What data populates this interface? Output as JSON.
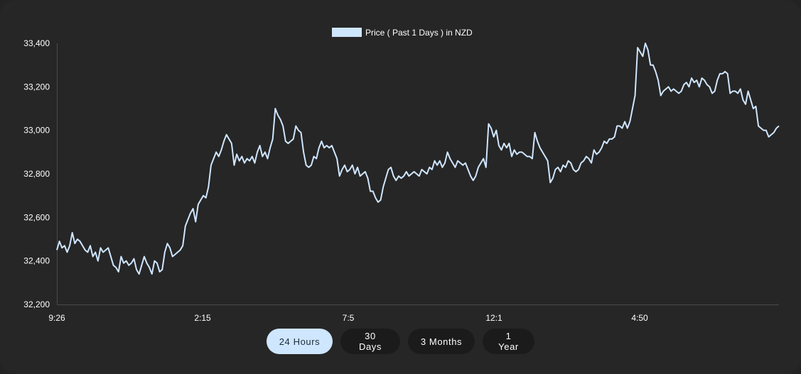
{
  "chart_data": {
    "type": "line",
    "legend": {
      "label": "Price ( Past 1 Days ) in NZD",
      "placement": "top-center"
    },
    "series_color": "#cfe6ff",
    "ylim": [
      32200,
      33400
    ],
    "y_ticks": [
      "33,400",
      "33,200",
      "33,000",
      "32,800",
      "32,600",
      "32,400",
      "32,200"
    ],
    "y_tick_values": [
      33400,
      33200,
      33000,
      32800,
      32600,
      32400,
      32200
    ],
    "x_tick_labels": [
      "9:26",
      "2:15",
      "7:5",
      "12:1",
      "4:50"
    ],
    "grid": false,
    "values": [
      32450,
      32490,
      32460,
      32470,
      32440,
      32470,
      32530,
      32480,
      32500,
      32490,
      32470,
      32450,
      32440,
      32470,
      32420,
      32440,
      32400,
      32460,
      32440,
      32450,
      32460,
      32420,
      32380,
      32370,
      32350,
      32420,
      32390,
      32400,
      32380,
      32390,
      32410,
      32360,
      32340,
      32380,
      32420,
      32390,
      32370,
      32340,
      32400,
      32390,
      32350,
      32360,
      32440,
      32480,
      32460,
      32420,
      32430,
      32440,
      32450,
      32470,
      32560,
      32590,
      32620,
      32640,
      32580,
      32660,
      32680,
      32700,
      32690,
      32740,
      32840,
      32870,
      32900,
      32880,
      32910,
      32950,
      32980,
      32960,
      32940,
      32840,
      32890,
      32860,
      32880,
      32850,
      32870,
      32860,
      32880,
      32850,
      32900,
      32930,
      32880,
      32900,
      32870,
      32920,
      32960,
      33100,
      33070,
      33050,
      33020,
      32950,
      32940,
      32950,
      32960,
      33020,
      33000,
      32990,
      32900,
      32840,
      32830,
      32840,
      32880,
      32870,
      32920,
      32950,
      32920,
      32930,
      32920,
      32930,
      32900,
      32870,
      32790,
      32820,
      32840,
      32810,
      32820,
      32840,
      32800,
      32830,
      32790,
      32800,
      32810,
      32780,
      32720,
      32720,
      32690,
      32670,
      32680,
      32740,
      32780,
      32820,
      32830,
      32790,
      32770,
      32790,
      32780,
      32790,
      32810,
      32790,
      32800,
      32810,
      32800,
      32790,
      32820,
      32810,
      32800,
      32830,
      32820,
      32860,
      32840,
      32860,
      32830,
      32850,
      32900,
      32870,
      32850,
      32830,
      32860,
      32850,
      32840,
      32850,
      32820,
      32790,
      32770,
      32790,
      32830,
      32850,
      32870,
      32830,
      33030,
      33010,
      32970,
      33000,
      32930,
      32910,
      32940,
      32920,
      32940,
      32880,
      32910,
      32890,
      32900,
      32900,
      32890,
      32880,
      32880,
      32870,
      32990,
      32950,
      32920,
      32900,
      32880,
      32860,
      32760,
      32780,
      32820,
      32830,
      32810,
      32840,
      32830,
      32860,
      32850,
      32820,
      32810,
      32820,
      32850,
      32860,
      32880,
      32870,
      32850,
      32910,
      32890,
      32900,
      32920,
      32950,
      32940,
      32960,
      32960,
      32970,
      33020,
      33020,
      33010,
      33040,
      33010,
      33040,
      33100,
      33160,
      33380,
      33360,
      33340,
      33400,
      33370,
      33300,
      33300,
      33270,
      33230,
      33160,
      33180,
      33190,
      33200,
      33180,
      33190,
      33180,
      33170,
      33180,
      33210,
      33220,
      33200,
      33240,
      33220,
      33230,
      33200,
      33240,
      33230,
      33210,
      33200,
      33170,
      33180,
      33230,
      33260,
      33260,
      33270,
      33260,
      33170,
      33180,
      33180,
      33170,
      33190,
      33140,
      33120,
      33180,
      33140,
      33100,
      33110,
      33020,
      33010,
      33000,
      33000,
      32970,
      32980,
      32990,
      33010,
      33020
    ]
  },
  "buttons": [
    {
      "label": "24 Hours",
      "active": true
    },
    {
      "label": "30 Days",
      "active": false
    },
    {
      "label": "3 Months",
      "active": false
    },
    {
      "label": "1 Year",
      "active": false
    }
  ]
}
